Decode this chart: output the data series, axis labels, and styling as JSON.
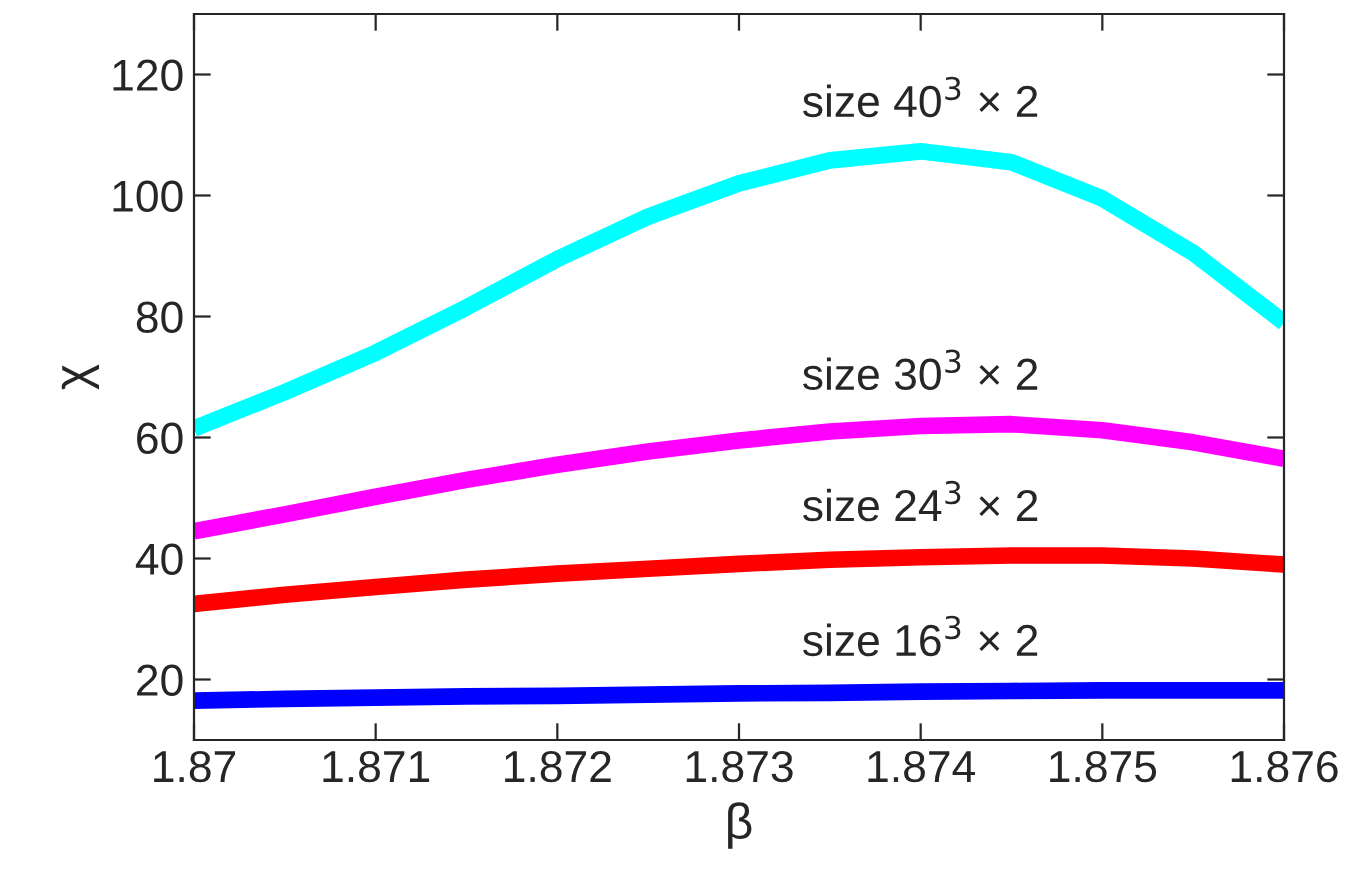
{
  "chart_data": {
    "type": "line",
    "xlabel": "β",
    "ylabel": "χ",
    "x": [
      1.87,
      1.8705,
      1.871,
      1.8715,
      1.872,
      1.8725,
      1.873,
      1.8735,
      1.874,
      1.8745,
      1.875,
      1.8755,
      1.876
    ],
    "series": [
      {
        "name": "size 40$^{3}$ × 2",
        "color": "#00ffff",
        "values": [
          61.5,
          67.5,
          74,
          81.5,
          89.5,
          96.5,
          102,
          105.8,
          107.3,
          105.5,
          99.5,
          90.5,
          79
        ]
      },
      {
        "name": "size 30$^{3}$ × 2",
        "color": "#ff00ff",
        "values": [
          44.5,
          47.3,
          50.2,
          53,
          55.5,
          57.7,
          59.5,
          61,
          61.9,
          62.2,
          61.2,
          59.2,
          56.5
        ]
      },
      {
        "name": "size 24$^{3}$ × 2",
        "color": "#ff0000",
        "values": [
          32.5,
          34,
          35.3,
          36.5,
          37.5,
          38.3,
          39.1,
          39.8,
          40.2,
          40.5,
          40.5,
          40,
          39
        ]
      },
      {
        "name": "size 16$^{3}$ × 2",
        "color": "#0000ff",
        "values": [
          16.5,
          16.8,
          17,
          17.2,
          17.3,
          17.5,
          17.7,
          17.8,
          18,
          18.1,
          18.2,
          18.2,
          18.2
        ]
      }
    ],
    "xlim": [
      1.87,
      1.876
    ],
    "ylim": [
      10,
      130
    ],
    "xticks": [
      {
        "value": 1.87,
        "label": "1.87"
      },
      1.871,
      1.872,
      1.873,
      1.874,
      1.875,
      1.876
    ],
    "yticks": [
      20,
      40,
      60,
      80,
      100,
      120
    ],
    "grid": false,
    "legend": false,
    "line_style": "solid",
    "marker": "none"
  }
}
